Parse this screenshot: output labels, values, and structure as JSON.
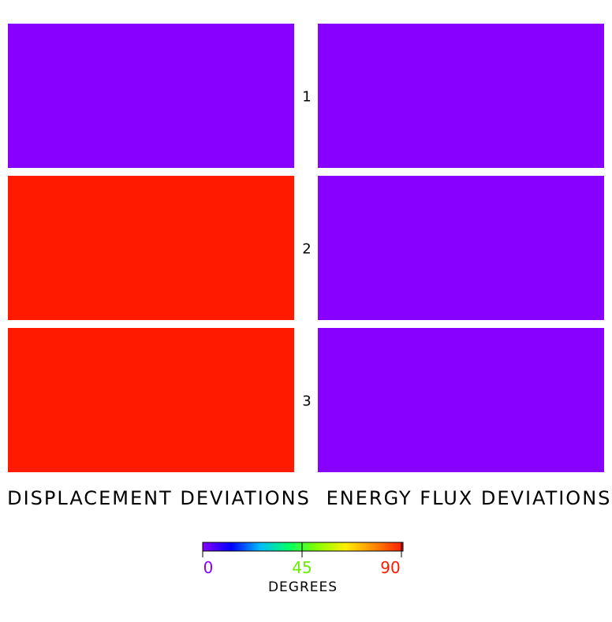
{
  "chart_data": {
    "type": "heatmap",
    "columns": [
      "DISPLACEMENT DEVIATIONS",
      "ENERGY FLUX DEVIATIONS"
    ],
    "rows": [
      "1",
      "2",
      "3"
    ],
    "values": [
      [
        0,
        0
      ],
      [
        90,
        0
      ],
      [
        90,
        0
      ]
    ],
    "colorbar": {
      "title": "DEGREES",
      "min": 0,
      "max": 90,
      "ticks": [
        {
          "value": 0,
          "label": "0",
          "color": "#8800ff"
        },
        {
          "value": 45,
          "label": "45",
          "color": "#66ee00"
        },
        {
          "value": 90,
          "label": "90",
          "color": "#ff1a00"
        }
      ],
      "gradient": [
        "#8800ff",
        "#0000ff",
        "#00bbff",
        "#00ff66",
        "#88ff00",
        "#ffee00",
        "#ff8800",
        "#ff1a00"
      ]
    },
    "colors": {
      "low": "#8800ff",
      "high": "#ff1a00"
    }
  }
}
